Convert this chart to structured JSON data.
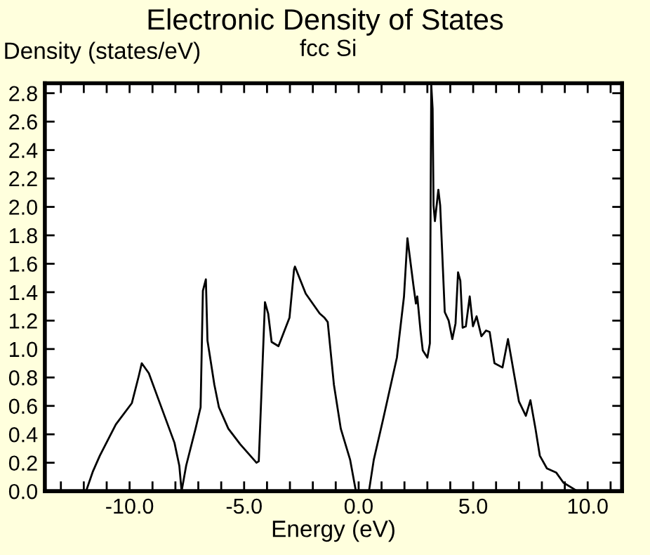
{
  "chart_data": {
    "type": "line",
    "title": "Electronic Density of States",
    "subtitle": "fcc Si",
    "xlabel": "Energy (eV)",
    "ylabel": "Density (states/eV)",
    "xlim": [
      -13.7,
      11.5
    ],
    "ylim": [
      0,
      2.87
    ],
    "xticks": [
      {
        "value": -13,
        "label": null
      },
      {
        "value": -12,
        "label": null
      },
      {
        "value": -11,
        "label": null
      },
      {
        "value": -10,
        "label": "-10.0"
      },
      {
        "value": -9,
        "label": null
      },
      {
        "value": -8,
        "label": null
      },
      {
        "value": -7,
        "label": null
      },
      {
        "value": -6,
        "label": null
      },
      {
        "value": -5,
        "label": "-5.0"
      },
      {
        "value": -4,
        "label": null
      },
      {
        "value": -3,
        "label": null
      },
      {
        "value": -2,
        "label": null
      },
      {
        "value": -1,
        "label": null
      },
      {
        "value": 0,
        "label": "0.0"
      },
      {
        "value": 1,
        "label": null
      },
      {
        "value": 2,
        "label": null
      },
      {
        "value": 3,
        "label": null
      },
      {
        "value": 4,
        "label": null
      },
      {
        "value": 5,
        "label": "5.0"
      },
      {
        "value": 6,
        "label": null
      },
      {
        "value": 7,
        "label": null
      },
      {
        "value": 8,
        "label": null
      },
      {
        "value": 9,
        "label": null
      },
      {
        "value": 10,
        "label": "10.0"
      },
      {
        "value": 11,
        "label": null
      }
    ],
    "yticks": [
      {
        "value": 0,
        "label": "0.0"
      },
      {
        "value": 0.2,
        "label": "0.2"
      },
      {
        "value": 0.4,
        "label": "0.4"
      },
      {
        "value": 0.6,
        "label": "0.6"
      },
      {
        "value": 0.8,
        "label": "0.8"
      },
      {
        "value": 1.0,
        "label": "1.0"
      },
      {
        "value": 1.2,
        "label": "1.2"
      },
      {
        "value": 1.4,
        "label": "1.4"
      },
      {
        "value": 1.6,
        "label": "1.6"
      },
      {
        "value": 1.8,
        "label": "1.8"
      },
      {
        "value": 2.0,
        "label": "2.0"
      },
      {
        "value": 2.2,
        "label": "2.2"
      },
      {
        "value": 2.4,
        "label": "2.4"
      },
      {
        "value": 2.6,
        "label": "2.6"
      },
      {
        "value": 2.8,
        "label": "2.8"
      }
    ],
    "grid": false,
    "marker": "none",
    "line_style": "solid",
    "series": [
      {
        "color": "#000000",
        "x": [
          -11.9,
          -11.6,
          -11.3,
          -10.6,
          -9.9,
          -9.6,
          -9.47,
          -9.16,
          -8.75,
          -8.04,
          -7.83,
          -7.73,
          -7.53,
          -7.12,
          -6.9,
          -6.8,
          -6.67,
          -6.6,
          -6.3,
          -6.1,
          -5.69,
          -5.17,
          -4.46,
          -4.36,
          -4.09,
          -3.95,
          -3.8,
          -3.5,
          -3.02,
          -2.82,
          -2.78,
          -2.31,
          -1.7,
          -1.49,
          -1.35,
          -1.08,
          -0.78,
          -0.37,
          -0.12,
          0.45,
          0.66,
          1.06,
          1.67,
          1.98,
          2.13,
          2.39,
          2.5,
          2.56,
          2.7,
          2.8,
          3.0,
          3.11,
          3.17,
          3.23,
          3.27,
          3.33,
          3.48,
          3.56,
          3.76,
          3.93,
          4.09,
          4.23,
          4.34,
          4.44,
          4.54,
          4.68,
          4.85,
          4.99,
          5.15,
          5.36,
          5.56,
          5.72,
          5.93,
          6.28,
          6.52,
          6.79,
          7.0,
          7.3,
          7.5,
          7.72,
          7.91,
          8.22,
          8.63,
          8.94,
          9.45,
          9.55,
          10.0
        ],
        "values": [
          0,
          0.14,
          0.25,
          0.47,
          0.62,
          0.81,
          0.9,
          0.83,
          0.65,
          0.34,
          0.18,
          0,
          0.18,
          0.44,
          0.59,
          1.41,
          1.49,
          1.06,
          0.75,
          0.59,
          0.44,
          0.33,
          0.2,
          0.21,
          1.33,
          1.25,
          1.05,
          1.02,
          1.22,
          1.56,
          1.58,
          1.39,
          1.25,
          1.22,
          1.19,
          0.75,
          0.44,
          0.22,
          0,
          0,
          0.22,
          0.5,
          0.94,
          1.37,
          1.78,
          1.45,
          1.32,
          1.37,
          1.13,
          0.99,
          0.94,
          1.04,
          2.86,
          2.69,
          2.01,
          1.9,
          2.12,
          2.01,
          1.26,
          1.2,
          1.07,
          1.18,
          1.54,
          1.48,
          1.15,
          1.16,
          1.37,
          1.16,
          1.23,
          1.09,
          1.13,
          1.12,
          0.9,
          0.87,
          1.07,
          0.82,
          0.63,
          0.53,
          0.64,
          0.44,
          0.25,
          0.16,
          0.13,
          0.06,
          0.01,
          0,
          0
        ]
      }
    ]
  }
}
